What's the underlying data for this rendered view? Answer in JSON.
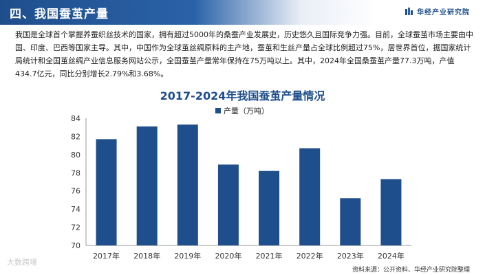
{
  "header": {
    "title": "四、我国蚕茧产量",
    "brand": "华经产业研究院"
  },
  "intro": {
    "text": "我国是全球首个掌握养蚕织丝技术的国家，拥有超过5000年的桑蚕产业发展史，历史悠久且国际竞争力强。目前，全球蚕茧市场主要由中国、印度、巴西等国家主导。其中，中国作为全球茧丝绸原料的主产地，蚕茧和生丝产量占全球比例超过75%，居世界首位，据国家统计局统计和全国茧丝绸产业信息服务网站公示，全国蚕茧产量常年保持在75万吨以上。其中，2024年全国桑蚕茧产量77.3万吨，产值434.7亿元，同比分别增长2.79%和3.68%。"
  },
  "source": "资料来源：公开资料、华经产业研究院整理",
  "corner_mark": "大数跨境",
  "colors": {
    "bar": "#1f4e8c",
    "title": "#1f4e8c",
    "axis": "#999999"
  },
  "chart_data": {
    "type": "bar",
    "title": "2017-2024年我国蚕茧产量情况",
    "categories": [
      "2017年",
      "2018年",
      "2019年",
      "2020年",
      "2021年",
      "2022年",
      "2023年",
      "2024年"
    ],
    "series": [
      {
        "name": "产量（万吨）",
        "values": [
          81.7,
          83.1,
          83.3,
          78.9,
          78.2,
          80.7,
          75.2,
          77.3
        ]
      }
    ],
    "ylim": [
      70,
      84
    ],
    "yticks": [
      70,
      72,
      74,
      76,
      78,
      80,
      82,
      84
    ],
    "legend": "top-left",
    "grid": false
  }
}
